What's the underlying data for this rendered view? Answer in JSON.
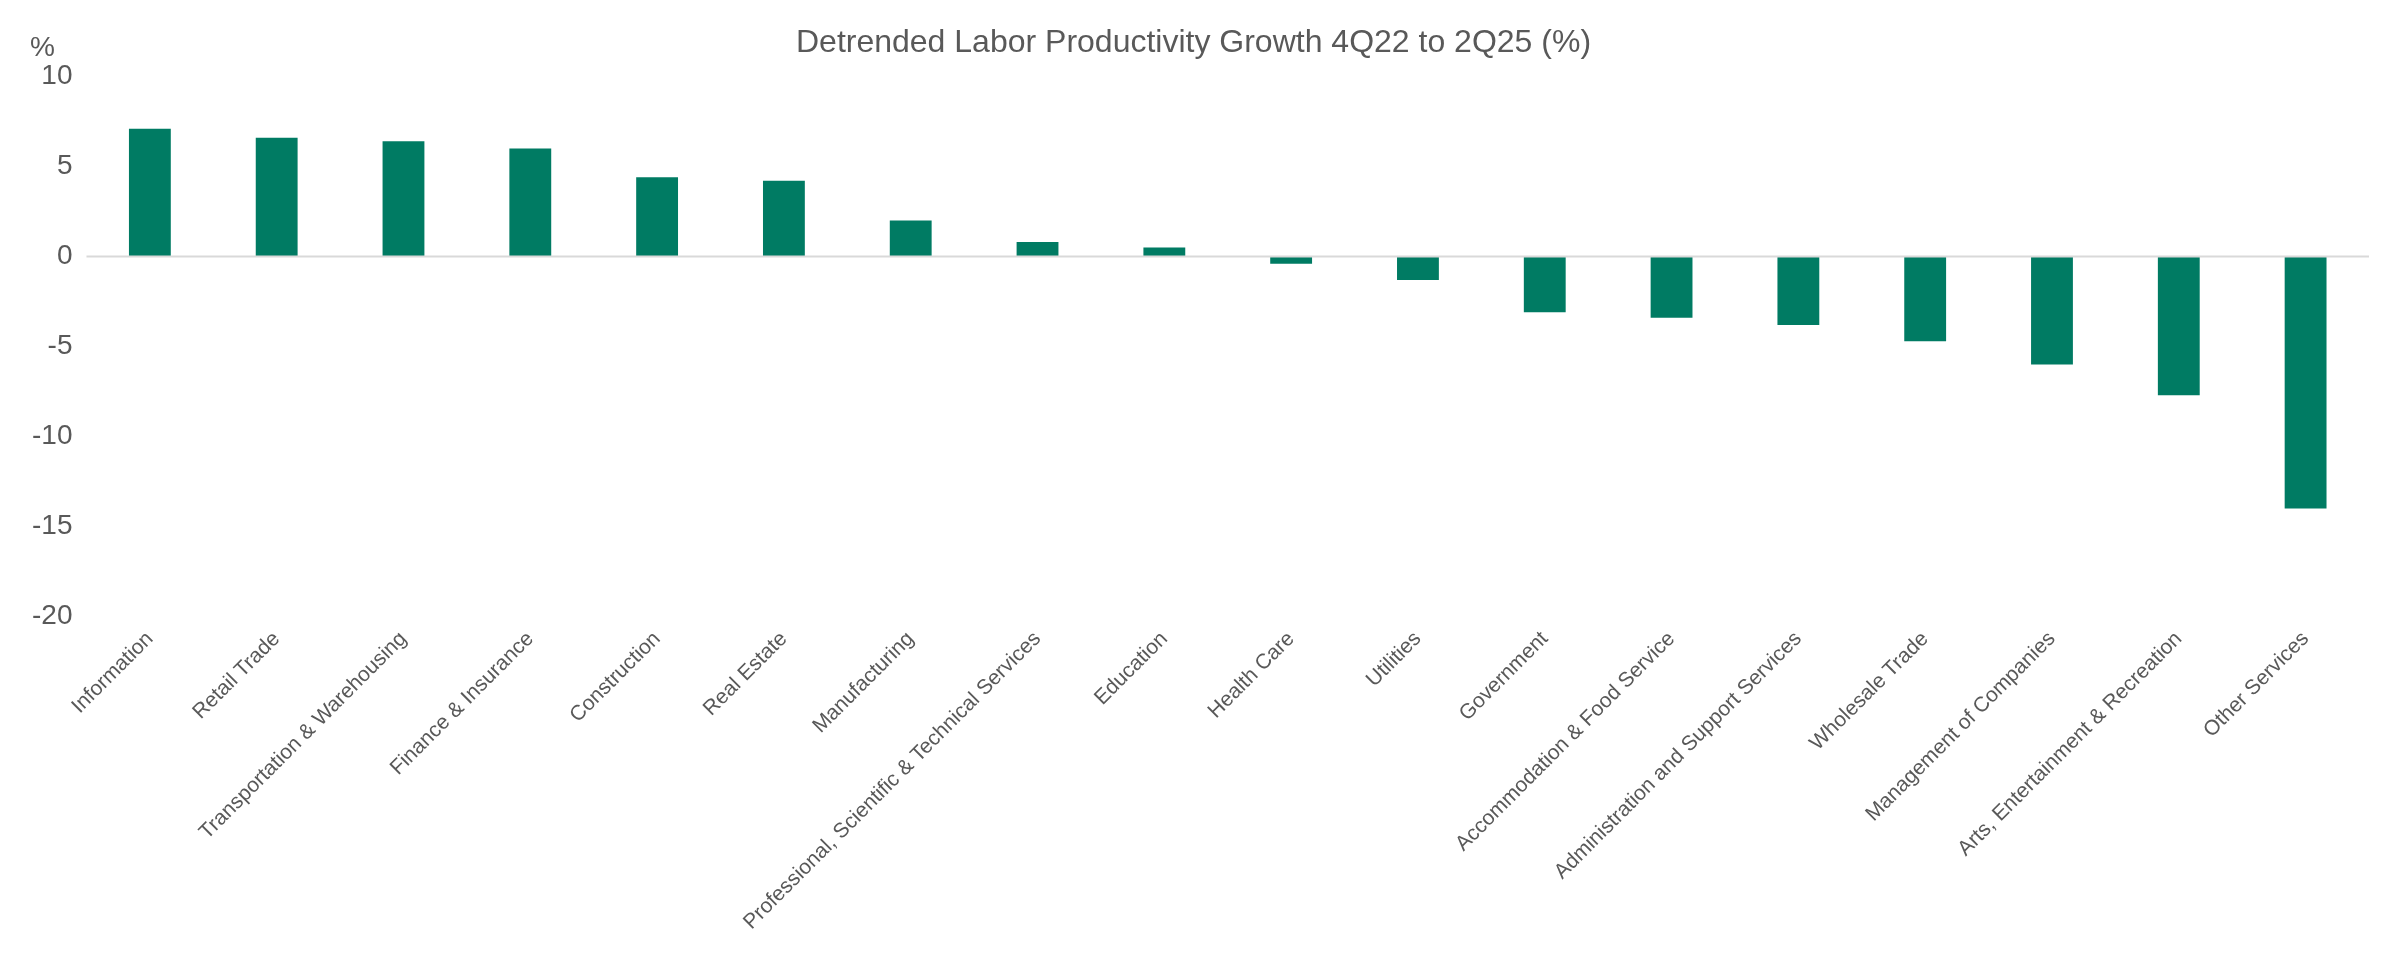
{
  "chart_data": {
    "type": "bar",
    "title": "Detrended Labor Productivity Growth 4Q22 to 2Q25 (%)",
    "ylabel": "%",
    "categories": [
      "Information",
      "Retail Trade",
      "Transportation & Warehousing",
      "Finance & Insurance",
      "Construction",
      "Real Estate",
      "Manufacturing",
      "Professional, Scientific & Technical Services",
      "Education",
      "Health Care",
      "Utilities",
      "Government",
      "Accommodation & Food Service",
      "Administration and Support Services",
      "Wholesale Trade",
      "Management of Companies",
      "Arts, Entertainment & Recreation",
      "Other Services"
    ],
    "values": [
      7.1,
      6.6,
      6.4,
      6.0,
      4.4,
      4.2,
      2.0,
      0.8,
      0.5,
      -0.4,
      -1.3,
      -3.1,
      -3.4,
      -3.8,
      -4.7,
      -6.0,
      -7.7,
      -14.0
    ],
    "color": "#007b63",
    "ylim": [
      -20,
      10
    ],
    "yticks": [
      10,
      5,
      0,
      -5,
      -10,
      -15,
      -20
    ],
    "legend": false
  }
}
